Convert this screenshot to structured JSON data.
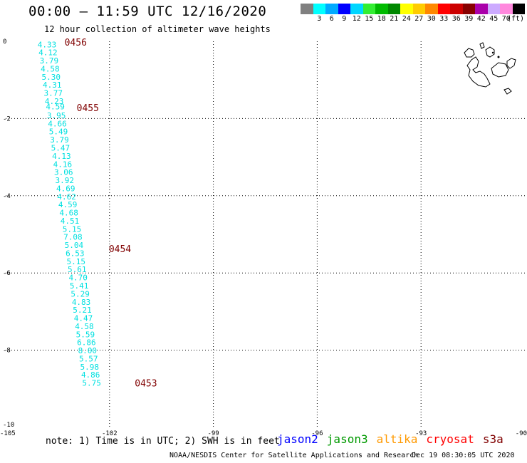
{
  "header": {
    "title": "00:00 – 11:59 UTC 12/16/2020",
    "subtitle": "12 hour collection of altimeter wave heights"
  },
  "legend": {
    "unit": "(ft)",
    "bins": [
      {
        "label": "",
        "color": "#808080"
      },
      {
        "label": "3",
        "color": "#00ffff"
      },
      {
        "label": "6",
        "color": "#00aaff"
      },
      {
        "label": "9",
        "color": "#0000ff"
      },
      {
        "label": "12",
        "color": "#00d6ff"
      },
      {
        "label": "15",
        "color": "#33ee33"
      },
      {
        "label": "18",
        "color": "#00bb00"
      },
      {
        "label": "21",
        "color": "#008800"
      },
      {
        "label": "24",
        "color": "#ffff00"
      },
      {
        "label": "27",
        "color": "#ffcc00"
      },
      {
        "label": "30",
        "color": "#ff8800"
      },
      {
        "label": "33",
        "color": "#ff0000"
      },
      {
        "label": "36",
        "color": "#cc0000"
      },
      {
        "label": "39",
        "color": "#880000"
      },
      {
        "label": "42",
        "color": "#aa00aa"
      },
      {
        "label": "45",
        "color": "#ccaaff"
      },
      {
        "label": "70",
        "color": "#ff88dd"
      },
      {
        "label": "",
        "color": "#000000"
      }
    ]
  },
  "map": {
    "lon_range": [
      -105,
      -90
    ],
    "lat_range": [
      -10,
      0
    ],
    "lon_ticks": [
      "-105",
      "-102",
      "-99",
      "-96",
      "-93",
      "-90"
    ],
    "lat_ticks": [
      "0",
      "-2",
      "-4",
      "-6",
      "-8",
      "-10"
    ],
    "grid_lons": [
      -102,
      -99,
      -96,
      -93
    ],
    "grid_lats": [
      -2,
      -4,
      -6,
      -8
    ],
    "observations": [
      {
        "lon": -104.08,
        "lat": -0.06,
        "swh": "4.33"
      },
      {
        "lon": -104.05,
        "lat": -0.27,
        "swh": "4.12"
      },
      {
        "lon": -104.02,
        "lat": -0.48,
        "swh": "3.79"
      },
      {
        "lon": -103.99,
        "lat": -0.69,
        "swh": "4.58"
      },
      {
        "lon": -103.96,
        "lat": -0.9,
        "swh": "5.30"
      },
      {
        "lon": -103.93,
        "lat": -1.11,
        "swh": "4.31"
      },
      {
        "lon": -103.9,
        "lat": -1.32,
        "swh": "3.77"
      },
      {
        "lon": -103.87,
        "lat": -1.53,
        "swh": "4.23"
      },
      {
        "lon": -103.84,
        "lat": -1.67,
        "swh": "4.59"
      },
      {
        "lon": -103.81,
        "lat": -1.9,
        "swh": "3.95"
      },
      {
        "lon": -103.78,
        "lat": -2.11,
        "swh": "4.66"
      },
      {
        "lon": -103.75,
        "lat": -2.32,
        "swh": "5.49"
      },
      {
        "lon": -103.72,
        "lat": -2.53,
        "swh": "3.79"
      },
      {
        "lon": -103.69,
        "lat": -2.74,
        "swh": "5.47"
      },
      {
        "lon": -103.66,
        "lat": -2.95,
        "swh": "4.13"
      },
      {
        "lon": -103.63,
        "lat": -3.16,
        "swh": "4.16"
      },
      {
        "lon": -103.6,
        "lat": -3.37,
        "swh": "3.06"
      },
      {
        "lon": -103.57,
        "lat": -3.58,
        "swh": "3.92"
      },
      {
        "lon": -103.54,
        "lat": -3.79,
        "swh": "4.69"
      },
      {
        "lon": -103.51,
        "lat": -4.0,
        "swh": "4.62"
      },
      {
        "lon": -103.48,
        "lat": -4.21,
        "swh": "4.59"
      },
      {
        "lon": -103.45,
        "lat": -4.42,
        "swh": "4.68"
      },
      {
        "lon": -103.42,
        "lat": -4.63,
        "swh": "4.51"
      },
      {
        "lon": -103.36,
        "lat": -4.84,
        "swh": "5.15"
      },
      {
        "lon": -103.33,
        "lat": -5.05,
        "swh": "7.08"
      },
      {
        "lon": -103.3,
        "lat": -5.26,
        "swh": "5.04"
      },
      {
        "lon": -103.27,
        "lat": -5.47,
        "swh": "6.53"
      },
      {
        "lon": -103.24,
        "lat": -5.68,
        "swh": "5.15"
      },
      {
        "lon": -103.21,
        "lat": -5.89,
        "swh": "5.61"
      },
      {
        "lon": -103.18,
        "lat": -6.1,
        "swh": "4.70"
      },
      {
        "lon": -103.15,
        "lat": -6.31,
        "swh": "5.41"
      },
      {
        "lon": -103.12,
        "lat": -6.52,
        "swh": "5.29"
      },
      {
        "lon": -103.09,
        "lat": -6.73,
        "swh": "4.83"
      },
      {
        "lon": -103.06,
        "lat": -6.94,
        "swh": "5.21"
      },
      {
        "lon": -103.03,
        "lat": -7.15,
        "swh": "4.47"
      },
      {
        "lon": -103.0,
        "lat": -7.36,
        "swh": "4.58"
      },
      {
        "lon": -102.97,
        "lat": -7.57,
        "swh": "5.59"
      },
      {
        "lon": -102.94,
        "lat": -7.78,
        "swh": "6.86"
      },
      {
        "lon": -102.91,
        "lat": -7.99,
        "swh": "8.00"
      },
      {
        "lon": -102.88,
        "lat": -8.2,
        "swh": "5.57"
      },
      {
        "lon": -102.85,
        "lat": -8.41,
        "swh": "5.98"
      },
      {
        "lon": -102.82,
        "lat": -8.62,
        "swh": "4.86"
      },
      {
        "lon": -102.79,
        "lat": -8.83,
        "swh": "5.75"
      }
    ],
    "time_labels": [
      {
        "lon": -103.3,
        "lat": 0.0,
        "text": "0456"
      },
      {
        "lon": -102.95,
        "lat": -1.7,
        "text": "0455"
      },
      {
        "lon": -102.02,
        "lat": -5.35,
        "text": "0454"
      },
      {
        "lon": -101.27,
        "lat": -8.83,
        "text": "0453"
      }
    ],
    "colors": {
      "observation": "#00e0e0",
      "time_label": "#800000",
      "grid": "#000000",
      "land": "#000000"
    }
  },
  "footer": {
    "note": "note: 1) Time is in UTC; 2) SWH is in feet",
    "satellites": [
      {
        "name": "jason2",
        "color": "#0000ff"
      },
      {
        "name": "jason3",
        "color": "#009900"
      },
      {
        "name": "altika",
        "color": "#ff9900"
      },
      {
        "name": "cryosat",
        "color": "#ff0000"
      },
      {
        "name": "s3a",
        "color": "#800000"
      }
    ],
    "credit": "NOAA/NESDIS Center for Satellite Applications and Research",
    "timestamp": "Dec 19 08:30:05 UTC 2020"
  }
}
